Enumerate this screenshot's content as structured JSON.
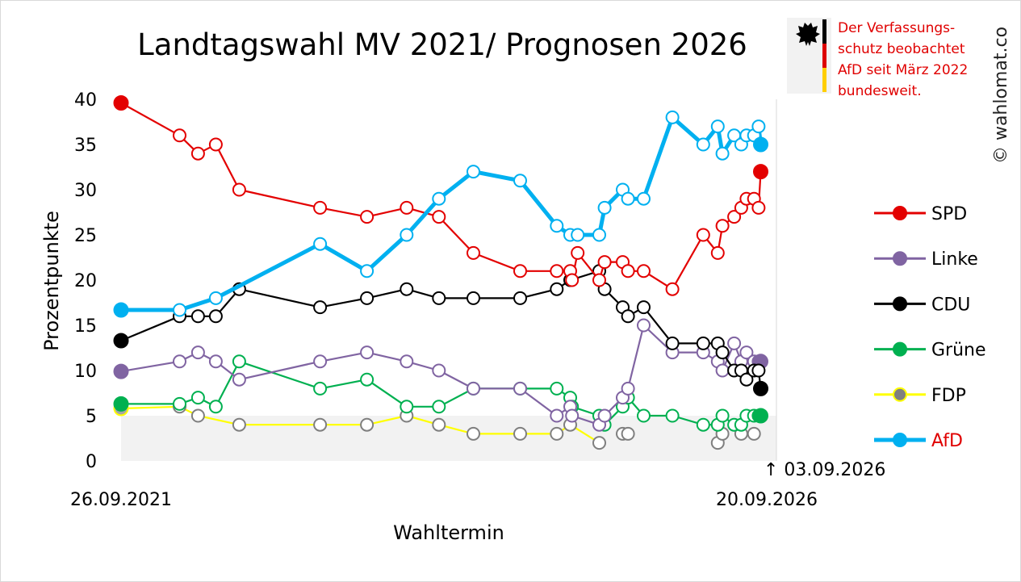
{
  "chart_data": {
    "type": "line",
    "title": "Landtagswahl MV 2021/ Prognosen 2026",
    "xlabel": "Wahltermin",
    "ylabel": "Prozentpunkte",
    "ylim": [
      0,
      40
    ],
    "yticks": [
      "0",
      "5",
      "10",
      "15",
      "20",
      "25",
      "30",
      "35",
      "40"
    ],
    "xlim": [
      "2021-09-26",
      "2026-09-20"
    ],
    "x_start_label": "26.09.2021",
    "x_end_label": "20.09.2026",
    "current_marker_label": "↑ 03.09.2026",
    "grid": false,
    "legend_position": "right",
    "highlight_band": [
      0,
      5
    ],
    "notice": [
      "Der Verfassungs-",
      "schutz beobachtet",
      "AfD seit März 2022",
      "bundesweit."
    ],
    "copyright": "© wahlomat.co",
    "colors": {
      "SPD": "#e30000",
      "Linke": "#8064a2",
      "CDU": "#000000",
      "Grüne": "#00b050",
      "FDP": "#ffff00",
      "AfD": "#00b0f0"
    },
    "series": [
      {
        "name": "SPD",
        "label_color": "#000000",
        "points": [
          [
            "2021-09-26",
            39.6
          ],
          [
            "2022-03-10",
            36
          ],
          [
            "2022-05-01",
            34
          ],
          [
            "2022-06-20",
            35
          ],
          [
            "2022-08-25",
            30
          ],
          [
            "2023-04-10",
            28
          ],
          [
            "2023-08-20",
            27
          ],
          [
            "2023-12-10",
            28
          ],
          [
            "2024-03-10",
            27
          ],
          [
            "2024-06-15",
            23
          ],
          [
            "2024-10-25",
            21
          ],
          [
            "2025-02-05",
            21
          ],
          [
            "2025-03-15",
            21
          ],
          [
            "2025-03-20",
            20
          ],
          [
            "2025-04-05",
            23
          ],
          [
            "2025-06-05",
            20
          ],
          [
            "2025-06-20",
            22
          ],
          [
            "2025-08-10",
            22
          ],
          [
            "2025-08-25",
            21
          ],
          [
            "2025-10-08",
            21
          ],
          [
            "2025-12-28",
            19
          ],
          [
            "2026-03-25",
            25
          ],
          [
            "2026-05-05",
            23
          ],
          [
            "2026-05-18",
            26
          ],
          [
            "2026-06-20",
            27
          ],
          [
            "2026-07-10",
            28
          ],
          [
            "2026-07-25",
            29
          ],
          [
            "2026-08-15",
            29
          ],
          [
            "2026-08-28",
            28
          ],
          [
            "2026-09-03",
            32
          ]
        ],
        "filled_first": true,
        "filled_last": true
      },
      {
        "name": "Linke",
        "label_color": "#000000",
        "points": [
          [
            "2021-09-26",
            9.9
          ],
          [
            "2022-03-10",
            11
          ],
          [
            "2022-05-01",
            12
          ],
          [
            "2022-06-20",
            11
          ],
          [
            "2022-08-25",
            9
          ],
          [
            "2023-04-10",
            11
          ],
          [
            "2023-08-20",
            12
          ],
          [
            "2023-12-10",
            11
          ],
          [
            "2024-03-10",
            10
          ],
          [
            "2024-06-15",
            8
          ],
          [
            "2024-10-25",
            8
          ],
          [
            "2025-02-05",
            5
          ],
          [
            "2025-03-15",
            6
          ],
          [
            "2025-03-20",
            5
          ],
          [
            "2025-06-05",
            4
          ],
          [
            "2025-06-20",
            5
          ],
          [
            "2025-08-10",
            7
          ],
          [
            "2025-08-25",
            8
          ],
          [
            "2025-10-08",
            15
          ],
          [
            "2025-12-28",
            12
          ],
          [
            "2026-03-25",
            12
          ],
          [
            "2026-05-05",
            11
          ],
          [
            "2026-05-18",
            10
          ],
          [
            "2026-06-20",
            13
          ],
          [
            "2026-07-10",
            11
          ],
          [
            "2026-07-25",
            12
          ],
          [
            "2026-08-15",
            11
          ],
          [
            "2026-08-28",
            11
          ],
          [
            "2026-09-03",
            11
          ]
        ],
        "filled_first": true,
        "filled_last": true
      },
      {
        "name": "CDU",
        "label_color": "#000000",
        "points": [
          [
            "2021-09-26",
            13.3
          ],
          [
            "2022-03-10",
            16
          ],
          [
            "2022-05-01",
            16
          ],
          [
            "2022-06-20",
            16
          ],
          [
            "2022-08-25",
            19
          ],
          [
            "2023-04-10",
            17
          ],
          [
            "2023-08-20",
            18
          ],
          [
            "2023-12-10",
            19
          ],
          [
            "2024-03-10",
            18
          ],
          [
            "2024-06-15",
            18
          ],
          [
            "2024-10-25",
            18
          ],
          [
            "2025-02-05",
            19
          ],
          [
            "2025-03-15",
            20
          ],
          [
            "2025-06-05",
            21
          ],
          [
            "2025-06-20",
            19
          ],
          [
            "2025-08-10",
            17
          ],
          [
            "2025-08-25",
            16
          ],
          [
            "2025-10-08",
            17
          ],
          [
            "2025-12-28",
            13
          ],
          [
            "2026-03-25",
            13
          ],
          [
            "2026-05-05",
            13
          ],
          [
            "2026-05-18",
            12
          ],
          [
            "2026-06-20",
            10
          ],
          [
            "2026-07-10",
            10
          ],
          [
            "2026-07-25",
            9
          ],
          [
            "2026-08-15",
            10
          ],
          [
            "2026-08-28",
            10
          ],
          [
            "2026-09-03",
            8
          ]
        ],
        "filled_first": true,
        "filled_last": true
      },
      {
        "name": "Grüne",
        "label_color": "#000000",
        "points": [
          [
            "2021-09-26",
            6.3
          ],
          [
            "2022-03-10",
            6.3
          ],
          [
            "2022-05-01",
            7
          ],
          [
            "2022-06-20",
            6
          ],
          [
            "2022-08-25",
            11
          ],
          [
            "2023-04-10",
            8
          ],
          [
            "2023-08-20",
            9
          ],
          [
            "2023-12-10",
            6
          ],
          [
            "2024-03-10",
            6
          ],
          [
            "2024-06-15",
            8
          ],
          [
            "2024-10-25",
            8
          ],
          [
            "2025-02-05",
            8
          ],
          [
            "2025-03-15",
            7
          ],
          [
            "2025-03-20",
            6
          ],
          [
            "2025-06-05",
            5
          ],
          [
            "2025-06-20",
            4
          ],
          [
            "2025-08-10",
            6
          ],
          [
            "2025-08-25",
            7
          ],
          [
            "2025-10-08",
            5
          ],
          [
            "2025-12-28",
            5
          ],
          [
            "2026-03-25",
            4
          ],
          [
            "2026-05-05",
            4
          ],
          [
            "2026-05-18",
            5
          ],
          [
            "2026-06-20",
            4
          ],
          [
            "2026-07-10",
            4
          ],
          [
            "2026-07-25",
            5
          ],
          [
            "2026-08-15",
            5
          ],
          [
            "2026-08-28",
            5
          ],
          [
            "2026-09-03",
            5
          ]
        ],
        "filled_first": true,
        "filled_last": true
      },
      {
        "name": "FDP",
        "label_color": "#000000",
        "marker_stroke": "#7f7f7f",
        "points": [
          [
            "2021-09-26",
            5.8
          ],
          [
            "2022-03-10",
            6
          ],
          [
            "2022-05-01",
            5
          ],
          [
            "2022-08-25",
            4
          ],
          [
            "2023-04-10",
            4
          ],
          [
            "2023-08-20",
            4
          ],
          [
            "2023-12-10",
            5
          ],
          [
            "2024-03-10",
            4
          ],
          [
            "2024-06-15",
            3
          ],
          [
            "2024-10-25",
            3
          ],
          [
            "2025-02-05",
            3
          ],
          [
            "2025-03-15",
            4
          ],
          [
            "2025-06-05",
            2
          ]
        ],
        "extra_points": [
          [
            "2025-08-10",
            3
          ],
          [
            "2025-08-25",
            3
          ],
          [
            "2026-05-05",
            2
          ],
          [
            "2026-05-18",
            3
          ],
          [
            "2026-07-10",
            3
          ],
          [
            "2026-08-15",
            3
          ]
        ],
        "filled_first": true,
        "filled_last": false
      },
      {
        "name": "AfD",
        "label_color": "#e00000",
        "points": [
          [
            "2021-09-26",
            16.7
          ],
          [
            "2022-03-10",
            16.7
          ],
          [
            "2022-06-20",
            18
          ],
          [
            "2023-04-10",
            24
          ],
          [
            "2023-08-20",
            21
          ],
          [
            "2023-12-10",
            25
          ],
          [
            "2024-03-10",
            29
          ],
          [
            "2024-06-15",
            32
          ],
          [
            "2024-10-25",
            31
          ],
          [
            "2025-02-05",
            26
          ],
          [
            "2025-03-15",
            25
          ],
          [
            "2025-04-05",
            25
          ],
          [
            "2025-06-05",
            25
          ],
          [
            "2025-06-20",
            28
          ],
          [
            "2025-08-10",
            30
          ],
          [
            "2025-08-25",
            29
          ],
          [
            "2025-10-08",
            29
          ],
          [
            "2025-12-28",
            38
          ],
          [
            "2026-03-25",
            35
          ],
          [
            "2026-05-05",
            37
          ],
          [
            "2026-05-18",
            34
          ],
          [
            "2026-06-20",
            36
          ],
          [
            "2026-07-10",
            35
          ],
          [
            "2026-07-25",
            36
          ],
          [
            "2026-08-15",
            36
          ],
          [
            "2026-08-28",
            37
          ],
          [
            "2026-09-03",
            35
          ]
        ],
        "filled_first": true,
        "filled_last": true,
        "thick": true
      }
    ]
  }
}
